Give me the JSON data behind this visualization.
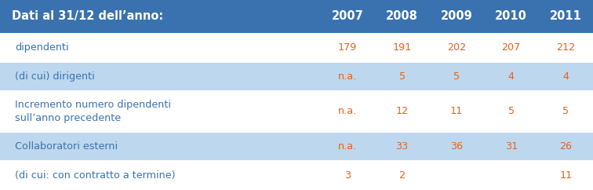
{
  "header_bg": "#3A72B0",
  "header_text_color": "#FFFFFF",
  "light_blue_bg": "#BDD7EE",
  "white_bg": "#FFFFFF",
  "data_text_color": "#E8621A",
  "label_text_color": "#3A72B0",
  "header_label": "Dati al 31/12 dell’anno:",
  "years": [
    "2007",
    "2008",
    "2009",
    "2010",
    "2011"
  ],
  "rows": [
    {
      "label": "dipendenti",
      "values": [
        "179",
        "191",
        "202",
        "207",
        "212"
      ],
      "bg": "#FFFFFF",
      "label_color": "#3A72B0"
    },
    {
      "label": "(di cui) dirigenti",
      "values": [
        "n.a.",
        "5",
        "5",
        "4",
        "4"
      ],
      "bg": "#BDD7EE",
      "label_color": "#3A72B0"
    },
    {
      "label": "Incremento numero dipendenti\nsull’anno precedente",
      "values": [
        "n.a.",
        "12",
        "11",
        "5",
        "5"
      ],
      "bg": "#FFFFFF",
      "label_color": "#3A72B0"
    },
    {
      "label": "Collaboratori esterni",
      "values": [
        "n.a.",
        "33",
        "36",
        "31",
        "26"
      ],
      "bg": "#BDD7EE",
      "label_color": "#3A72B0"
    },
    {
      "label": "(di cui: con contratto a termine)",
      "values": [
        "3",
        "2",
        "",
        "",
        "11"
      ],
      "bg": "#FFFFFF",
      "label_color": "#3A72B0"
    }
  ],
  "figsize": [
    7.56,
    2.42
  ],
  "dpi": 100
}
